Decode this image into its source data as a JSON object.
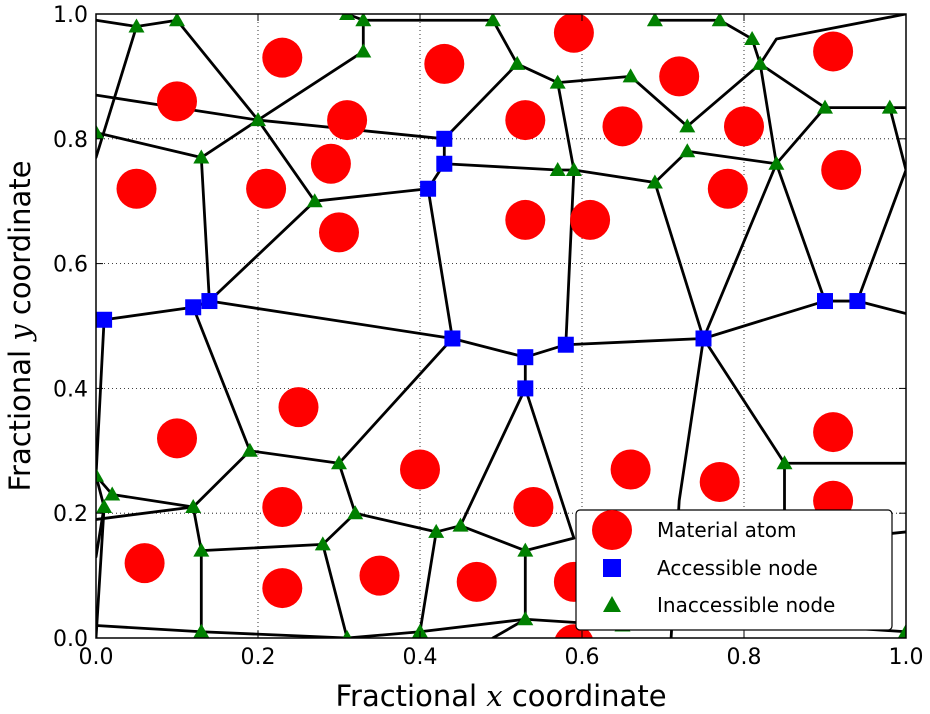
{
  "chart_data": {
    "type": "scatter",
    "xlabel_prefix": "Fractional ",
    "xlabel_var": "x",
    "xlabel_suffix": " coordinate",
    "ylabel_prefix": "Fractional ",
    "ylabel_var": "y",
    "ylabel_suffix": " coordinate",
    "xlim": [
      0.0,
      1.0
    ],
    "ylim": [
      0.0,
      1.0
    ],
    "xticks": [
      "0.0",
      "0.2",
      "0.4",
      "0.6",
      "0.8",
      "1.0"
    ],
    "yticks": [
      "0.0",
      "0.2",
      "0.4",
      "0.6",
      "0.8",
      "1.0"
    ],
    "grid": true,
    "legend_position": "bottom-right",
    "series": [
      {
        "name": "Material atom",
        "marker": "circle",
        "color": "#ff0000",
        "points": [
          [
            0.06,
            0.12
          ],
          [
            0.23,
            0.08
          ],
          [
            0.35,
            0.1
          ],
          [
            0.47,
            0.09
          ],
          [
            0.59,
            0.09
          ],
          [
            0.59,
            -0.01
          ],
          [
            0.23,
            0.21
          ],
          [
            0.4,
            0.27
          ],
          [
            0.54,
            0.21
          ],
          [
            0.66,
            0.27
          ],
          [
            0.77,
            0.25
          ],
          [
            0.91,
            0.22
          ],
          [
            0.1,
            0.32
          ],
          [
            0.25,
            0.37
          ],
          [
            0.91,
            0.33
          ],
          [
            0.05,
            0.72
          ],
          [
            0.21,
            0.72
          ],
          [
            0.3,
            0.65
          ],
          [
            0.29,
            0.76
          ],
          [
            0.53,
            0.67
          ],
          [
            0.61,
            0.67
          ],
          [
            0.78,
            0.72
          ],
          [
            0.92,
            0.75
          ],
          [
            0.1,
            0.86
          ],
          [
            0.31,
            0.83
          ],
          [
            0.53,
            0.83
          ],
          [
            0.65,
            0.82
          ],
          [
            0.8,
            0.82
          ],
          [
            0.23,
            0.93
          ],
          [
            0.43,
            0.92
          ],
          [
            0.59,
            0.97
          ],
          [
            0.72,
            0.9
          ],
          [
            0.91,
            0.94
          ]
        ]
      },
      {
        "name": "Accessible node",
        "marker": "square",
        "color": "#0000ff",
        "points": [
          [
            0.01,
            0.51
          ],
          [
            0.12,
            0.53
          ],
          [
            0.14,
            0.54
          ],
          [
            0.43,
            0.8
          ],
          [
            0.43,
            0.76
          ],
          [
            0.41,
            0.72
          ],
          [
            0.44,
            0.48
          ],
          [
            0.53,
            0.45
          ],
          [
            0.53,
            0.4
          ],
          [
            0.58,
            0.47
          ],
          [
            0.75,
            0.48
          ],
          [
            0.9,
            0.54
          ],
          [
            0.94,
            0.54
          ]
        ]
      },
      {
        "name": "Inaccessible node",
        "marker": "triangle",
        "color": "#008000",
        "points": [
          [
            0.05,
            0.98
          ],
          [
            0.1,
            0.99
          ],
          [
            0.31,
            1.0
          ],
          [
            0.33,
            0.99
          ],
          [
            0.49,
            0.99
          ],
          [
            0.69,
            0.99
          ],
          [
            0.77,
            0.99
          ],
          [
            0.81,
            0.96
          ],
          [
            0.82,
            0.92
          ],
          [
            0.66,
            0.9
          ],
          [
            0.57,
            0.89
          ],
          [
            0.52,
            0.92
          ],
          [
            0.33,
            0.94
          ],
          [
            0.0,
            0.81
          ],
          [
            0.13,
            0.77
          ],
          [
            0.2,
            0.83
          ],
          [
            0.27,
            0.7
          ],
          [
            0.57,
            0.75
          ],
          [
            0.59,
            0.75
          ],
          [
            0.69,
            0.73
          ],
          [
            0.73,
            0.78
          ],
          [
            0.73,
            0.82
          ],
          [
            0.84,
            0.76
          ],
          [
            0.9,
            0.85
          ],
          [
            0.98,
            0.85
          ],
          [
            0.0,
            0.26
          ],
          [
            0.01,
            0.21
          ],
          [
            0.02,
            0.23
          ],
          [
            0.12,
            0.21
          ],
          [
            0.19,
            0.3
          ],
          [
            0.3,
            0.28
          ],
          [
            0.32,
            0.2
          ],
          [
            0.13,
            0.14
          ],
          [
            0.28,
            0.15
          ],
          [
            0.42,
            0.17
          ],
          [
            0.45,
            0.18
          ],
          [
            0.53,
            0.14
          ],
          [
            0.13,
            0.01
          ],
          [
            0.31,
            0.0
          ],
          [
            0.4,
            0.01
          ],
          [
            0.53,
            0.03
          ],
          [
            0.65,
            0.02
          ],
          [
            0.85,
            0.28
          ],
          [
            1.0,
            0.01
          ]
        ]
      }
    ]
  },
  "chart_lines": [
    [
      [
        0.0,
        0.77
      ],
      [
        0.05,
        0.98
      ],
      [
        0.1,
        0.99
      ],
      [
        0.2,
        0.83
      ],
      [
        0.33,
        0.94
      ],
      [
        0.33,
        0.99
      ],
      [
        0.31,
        1.0
      ]
    ],
    [
      [
        0.0,
        0.87
      ],
      [
        0.2,
        0.83
      ],
      [
        0.43,
        0.8
      ],
      [
        0.52,
        0.92
      ],
      [
        0.57,
        0.89
      ],
      [
        0.66,
        0.9
      ],
      [
        0.73,
        0.82
      ],
      [
        0.82,
        0.92
      ],
      [
        0.81,
        0.96
      ],
      [
        0.77,
        0.99
      ],
      [
        0.69,
        0.99
      ]
    ],
    [
      [
        0.33,
        0.99
      ],
      [
        0.49,
        0.99
      ],
      [
        0.52,
        0.92
      ]
    ],
    [
      [
        0.57,
        0.89
      ],
      [
        0.59,
        0.75
      ],
      [
        0.57,
        0.75
      ],
      [
        0.43,
        0.76
      ],
      [
        0.43,
        0.8
      ]
    ],
    [
      [
        0.0,
        0.81
      ],
      [
        0.13,
        0.77
      ],
      [
        0.2,
        0.83
      ],
      [
        0.27,
        0.7
      ],
      [
        0.41,
        0.72
      ],
      [
        0.43,
        0.76
      ]
    ],
    [
      [
        0.13,
        0.77
      ],
      [
        0.14,
        0.54
      ],
      [
        0.27,
        0.7
      ]
    ],
    [
      [
        0.41,
        0.72
      ],
      [
        0.44,
        0.48
      ],
      [
        0.53,
        0.45
      ],
      [
        0.58,
        0.47
      ],
      [
        0.75,
        0.48
      ],
      [
        0.9,
        0.54
      ],
      [
        0.94,
        0.54
      ],
      [
        1.0,
        0.52
      ]
    ],
    [
      [
        0.59,
        0.75
      ],
      [
        0.58,
        0.47
      ]
    ],
    [
      [
        0.59,
        0.75
      ],
      [
        0.69,
        0.73
      ],
      [
        0.75,
        0.48
      ],
      [
        0.84,
        0.76
      ],
      [
        0.9,
        0.85
      ],
      [
        0.98,
        0.85
      ],
      [
        1.0,
        0.85
      ]
    ],
    [
      [
        0.69,
        0.73
      ],
      [
        0.73,
        0.78
      ],
      [
        0.84,
        0.76
      ],
      [
        0.82,
        0.92
      ],
      [
        0.9,
        0.85
      ]
    ],
    [
      [
        0.82,
        0.92
      ],
      [
        0.84,
        0.96
      ],
      [
        1.0,
        1.0
      ]
    ],
    [
      [
        0.9,
        0.54
      ],
      [
        0.84,
        0.76
      ]
    ],
    [
      [
        0.98,
        0.85
      ],
      [
        1.0,
        0.75
      ],
      [
        0.94,
        0.54
      ]
    ],
    [
      [
        0.01,
        0.51
      ],
      [
        0.12,
        0.53
      ],
      [
        0.14,
        0.54
      ],
      [
        0.44,
        0.48
      ]
    ],
    [
      [
        0.01,
        0.51
      ],
      [
        0.0,
        0.26
      ],
      [
        0.01,
        0.21
      ],
      [
        0.0,
        0.0
      ]
    ],
    [
      [
        0.12,
        0.53
      ],
      [
        0.19,
        0.3
      ],
      [
        0.3,
        0.28
      ],
      [
        0.44,
        0.48
      ]
    ],
    [
      [
        0.0,
        0.26
      ],
      [
        0.02,
        0.23
      ],
      [
        0.12,
        0.21
      ],
      [
        0.19,
        0.3
      ]
    ],
    [
      [
        0.12,
        0.21
      ],
      [
        0.13,
        0.14
      ],
      [
        0.28,
        0.15
      ],
      [
        0.32,
        0.2
      ],
      [
        0.3,
        0.28
      ]
    ],
    [
      [
        0.13,
        0.14
      ],
      [
        0.13,
        0.01
      ],
      [
        0.0,
        0.02
      ]
    ],
    [
      [
        0.28,
        0.15
      ],
      [
        0.31,
        0.0
      ]
    ],
    [
      [
        0.32,
        0.2
      ],
      [
        0.42,
        0.17
      ],
      [
        0.4,
        0.01
      ],
      [
        0.31,
        0.0
      ],
      [
        0.13,
        0.01
      ]
    ],
    [
      [
        0.42,
        0.17
      ],
      [
        0.45,
        0.18
      ],
      [
        0.53,
        0.4
      ],
      [
        0.53,
        0.45
      ]
    ],
    [
      [
        0.45,
        0.18
      ],
      [
        0.53,
        0.14
      ],
      [
        0.53,
        0.03
      ],
      [
        0.49,
        0.0
      ]
    ],
    [
      [
        0.53,
        0.4
      ],
      [
        0.59,
        0.16
      ],
      [
        0.53,
        0.14
      ]
    ],
    [
      [
        0.75,
        0.48
      ],
      [
        0.72,
        0.22
      ],
      [
        0.71,
        0.0
      ]
    ],
    [
      [
        0.75,
        0.48
      ],
      [
        0.85,
        0.28
      ],
      [
        0.94,
        0.28
      ],
      [
        1.0,
        0.28
      ]
    ],
    [
      [
        0.85,
        0.28
      ],
      [
        0.85,
        0.15
      ],
      [
        0.77,
        0.03
      ],
      [
        0.65,
        0.02
      ],
      [
        0.53,
        0.03
      ]
    ],
    [
      [
        0.4,
        0.01
      ],
      [
        0.53,
        0.03
      ]
    ],
    [
      [
        0.0,
        0.19
      ],
      [
        0.12,
        0.21
      ]
    ],
    [
      [
        0.0,
        0.13
      ],
      [
        0.01,
        0.21
      ]
    ],
    [
      [
        0.85,
        0.15
      ],
      [
        1.0,
        0.17
      ]
    ],
    [
      [
        0.77,
        0.03
      ],
      [
        1.0,
        0.01
      ]
    ],
    [
      [
        0.0,
        0.99
      ],
      [
        0.05,
        0.98
      ]
    ]
  ]
}
